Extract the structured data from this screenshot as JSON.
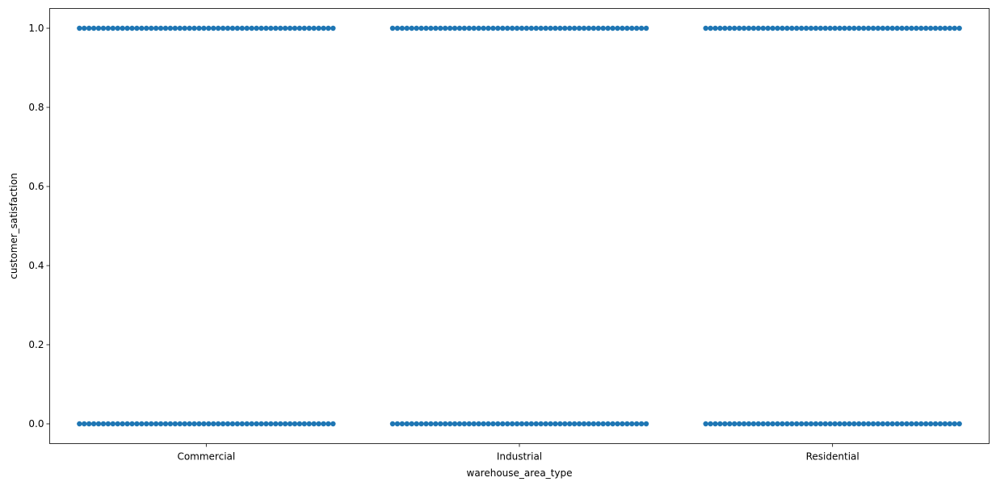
{
  "chart_data": {
    "type": "scatter",
    "subtype": "strip",
    "xlabel": "warehouse_area_type",
    "ylabel": "customer_satisfaction",
    "categories": [
      "Commercial",
      "Industrial",
      "Residential"
    ],
    "ylim": [
      -0.05,
      1.05
    ],
    "yticks": [
      0.0,
      0.2,
      0.4,
      0.6,
      0.8,
      1.0
    ],
    "ytick_labels": [
      "0.0",
      "0.2",
      "0.4",
      "0.6",
      "0.8",
      "1.0"
    ],
    "levels": [
      0,
      1
    ],
    "points_per_level": 54,
    "grid": false,
    "marker_color": "#1f77b4"
  }
}
